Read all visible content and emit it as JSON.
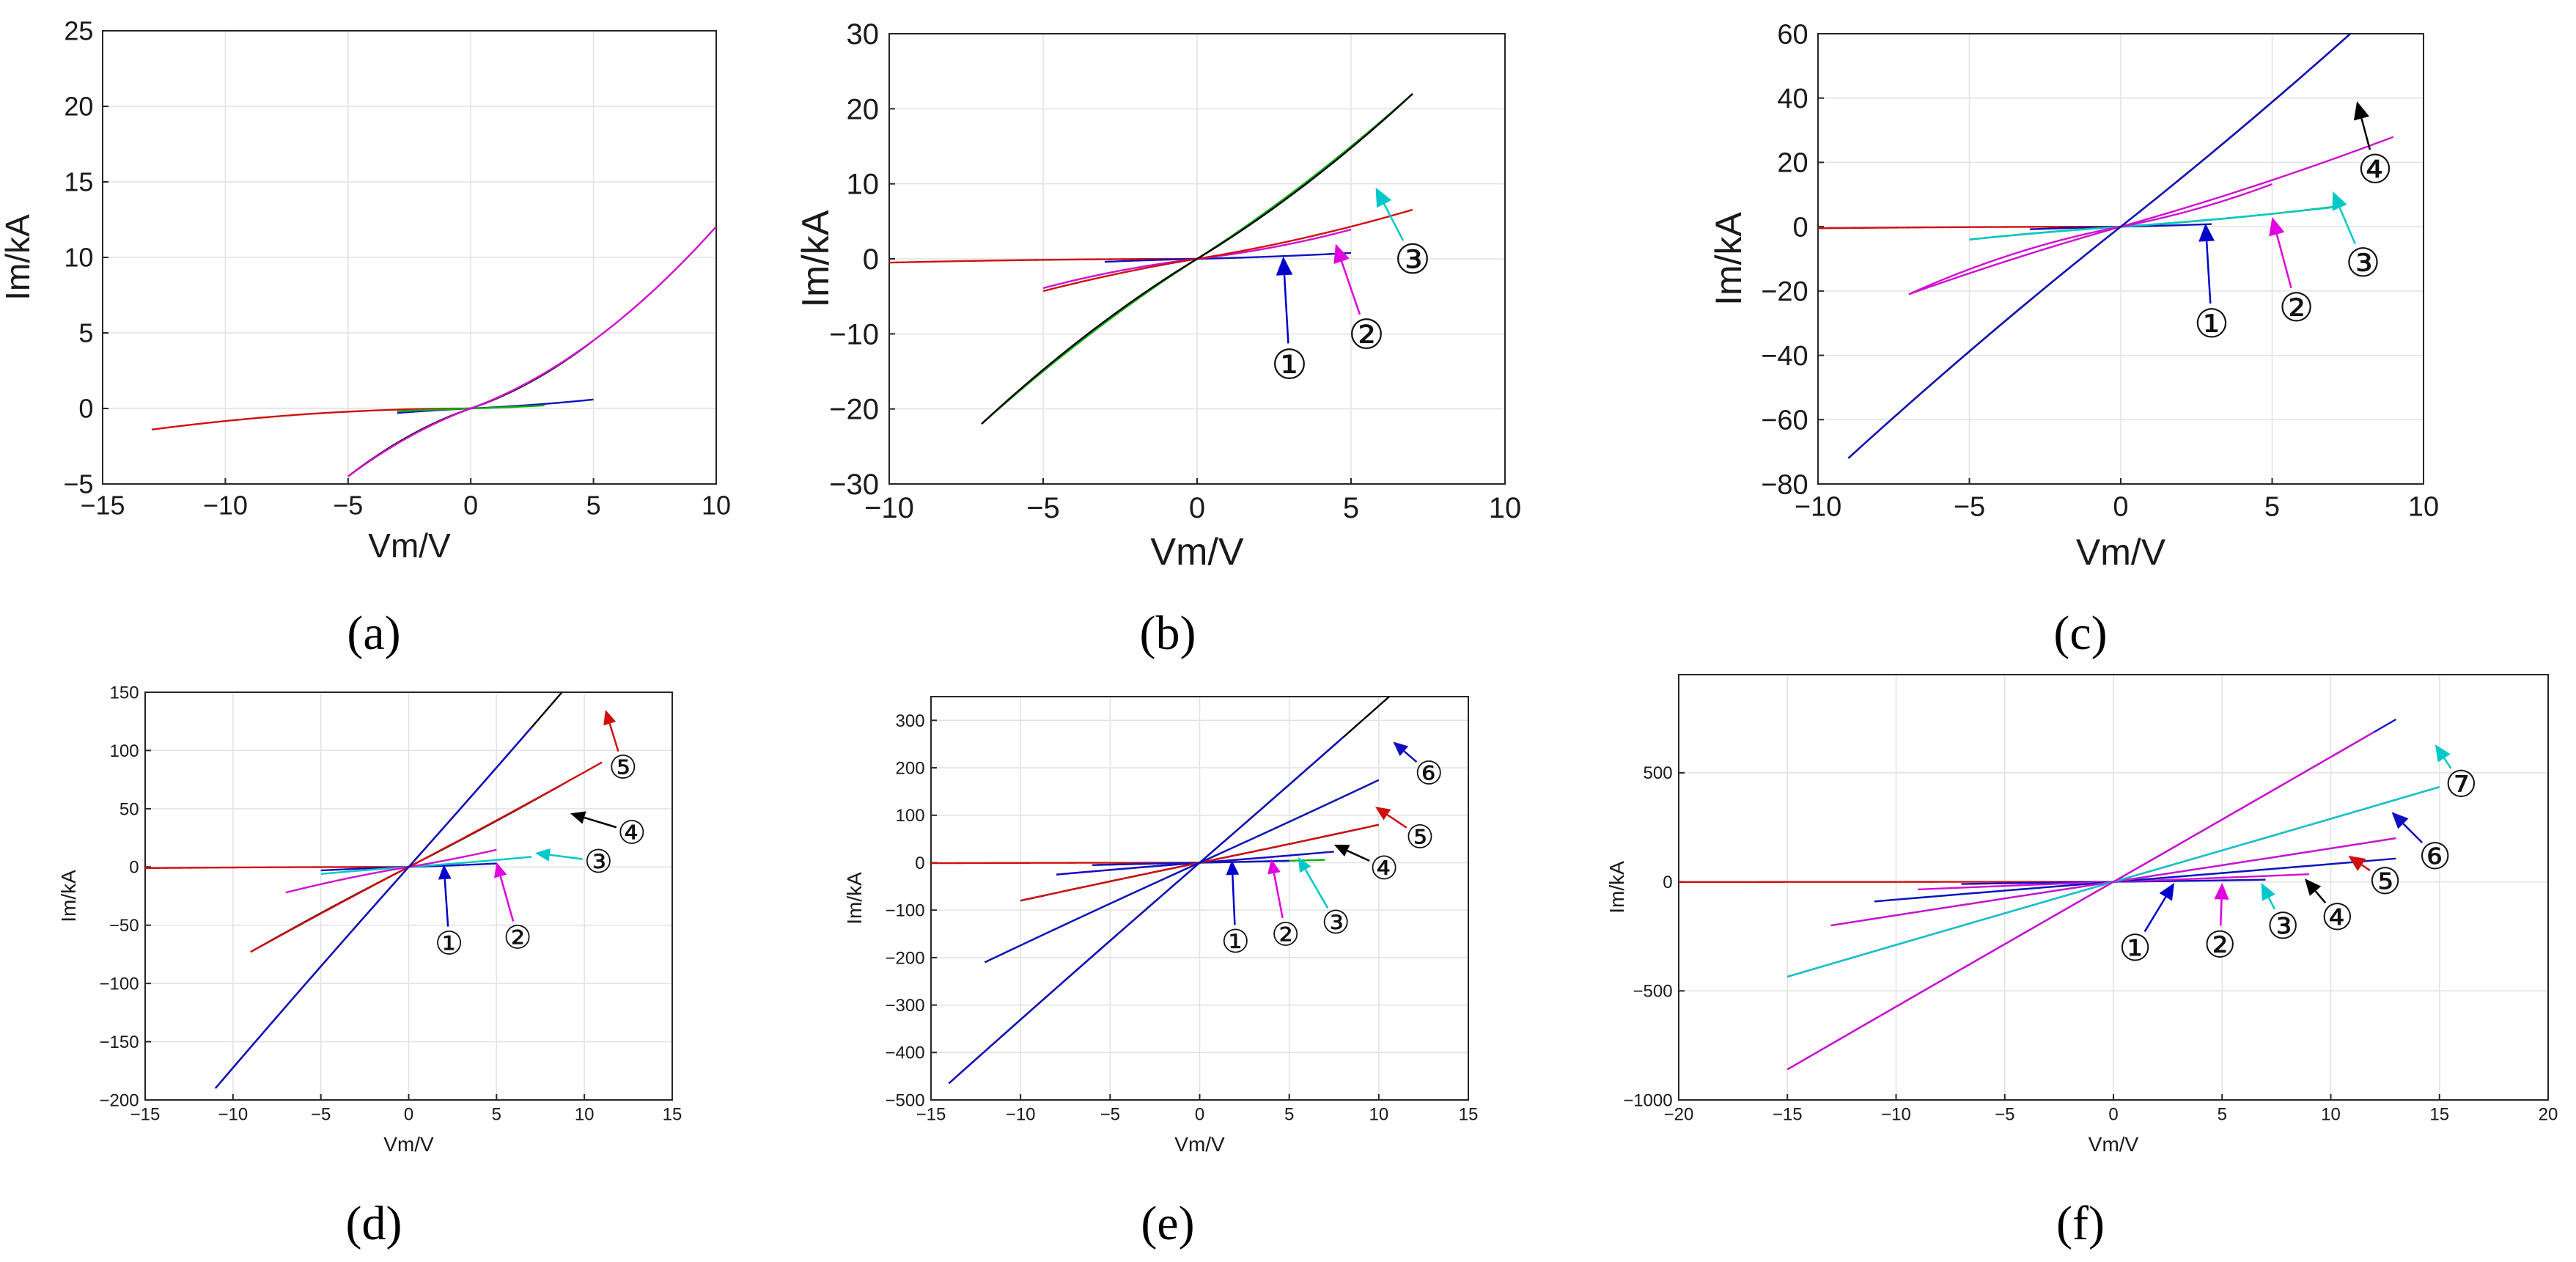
{
  "figure": {
    "description_hidden": false
  },
  "chart_data": [
    {
      "id": "a",
      "type": "line",
      "label": "(a)",
      "xlabel": "Vm/V",
      "ylabel": "Im/kA",
      "xlim": [
        -15,
        10
      ],
      "ylim": [
        -5,
        25
      ],
      "xticks": [
        -15,
        -10,
        -5,
        0,
        5,
        10
      ],
      "yticks": [
        -5,
        0,
        5,
        10,
        15,
        20,
        25
      ],
      "grid": true,
      "series": [
        {
          "color": "#d01010",
          "curve": [
            -13,
            0,
            1,
            -1.4,
            0.17,
            0.65
          ]
        },
        {
          "color": "#1010c0",
          "curve": [
            -3,
            5,
            1,
            -0.3,
            0.4,
            0.05
          ]
        },
        {
          "color": "#10b010",
          "curve": [
            -3,
            3,
            1,
            -0.2,
            0.05,
            0.01
          ]
        },
        {
          "color": "#000000",
          "curve": [
            -5,
            5,
            1,
            -4.5,
            0.4,
            0.05
          ]
        },
        {
          "color": "#d010d0",
          "curve": [
            -5,
            10,
            0,
            -4.5,
            1.0,
            0.102
          ]
        }
      ],
      "callouts": []
    },
    {
      "id": "b",
      "type": "line",
      "label": "(b)",
      "xlabel": "Vm/V",
      "ylabel": "Im/kA",
      "xlim": [
        -10,
        10
      ],
      "ylim": [
        -30,
        30
      ],
      "xticks": [
        -10,
        -5,
        0,
        5,
        10
      ],
      "yticks": [
        -30,
        -20,
        -10,
        0,
        10,
        20,
        30
      ],
      "grid": true,
      "series": [
        {
          "color": "#d01010",
          "curve": [
            -10,
            0,
            1,
            -0.5,
            0.3,
            0.35
          ]
        },
        {
          "color": "#1010c0",
          "curve": [
            -3,
            5,
            1,
            -0.4,
            0.4,
            0.05
          ]
        },
        {
          "color": "#d010d0",
          "curve": [
            -5,
            5,
            1,
            -3.9,
            0.4,
            0.05
          ]
        },
        {
          "color": "#10b010",
          "curve": [
            -7,
            7,
            1,
            -22,
            1.8,
            0.05
          ]
        },
        {
          "color": "#d01010",
          "curve": [
            -5,
            7,
            1,
            -4.3,
            0.8,
            0.045
          ]
        },
        {
          "color": "#000000",
          "curve": [
            -7,
            7,
            1,
            -22,
            2.4,
            0.09
          ]
        }
      ],
      "callouts": [
        {
          "text": "①",
          "color": "#0000cc",
          "tip": [
            2.8,
            0.3
          ],
          "pos": [
            3.0,
            -14
          ]
        },
        {
          "text": "②",
          "color": "#e000e0",
          "tip": [
            4.5,
            2
          ],
          "pos": [
            5.5,
            -10
          ]
        },
        {
          "text": "③",
          "color": "#00c8c8",
          "tip": [
            5.8,
            9.5
          ],
          "pos": [
            7.0,
            0
          ]
        }
      ]
    },
    {
      "id": "c",
      "type": "line",
      "label": "(c)",
      "xlabel": "Vm/V",
      "ylabel": "Im/kA",
      "xlim": [
        -10,
        10
      ],
      "ylim": [
        -80,
        60
      ],
      "xticks": [
        -10,
        -5,
        0,
        5,
        10
      ],
      "yticks": [
        -80,
        -60,
        -40,
        -20,
        0,
        20,
        40,
        60
      ],
      "grid": true,
      "series": [
        {
          "color": "#d01010",
          "curve": [
            -10,
            0,
            1,
            -0.5,
            0.3,
            0.35
          ]
        },
        {
          "color": "#1010c0",
          "curve": [
            -3,
            3,
            1,
            -0.8,
            0.3,
            0.03
          ]
        },
        {
          "color": "#10b010",
          "curve": [
            -5,
            7,
            1,
            -4,
            0.9,
            0.06
          ]
        },
        {
          "color": "#00c8c8",
          "curve": [
            -5,
            7,
            1,
            -4,
            1.3,
            0.06
          ]
        },
        {
          "color": "#d010d0",
          "curve": [
            -7,
            5,
            1,
            -21,
            0.5,
            0.05
          ]
        },
        {
          "color": "#d010d0",
          "curve": [
            -7,
            9,
            0,
            -21,
            4.2,
            0.08
          ]
        },
        {
          "color": "#000000",
          "curve": [
            -9,
            9,
            1,
            -72,
            6.2,
            0.05
          ]
        },
        {
          "color": "#1010c0",
          "curve": [
            -9,
            9,
            0,
            -72,
            7.0,
            0.06
          ]
        }
      ],
      "callouts": [
        {
          "text": "①",
          "color": "#0000cc",
          "tip": [
            2.8,
            1
          ],
          "pos": [
            3.0,
            -30
          ]
        },
        {
          "text": "②",
          "color": "#e000e0",
          "tip": [
            5.0,
            3
          ],
          "pos": [
            5.8,
            -25
          ]
        },
        {
          "text": "③",
          "color": "#00c8c8",
          "tip": [
            7.0,
            11
          ],
          "pos": [
            8.0,
            -11
          ]
        },
        {
          "text": "④",
          "color": "#000000",
          "tip": [
            7.8,
            39
          ],
          "pos": [
            8.4,
            18
          ]
        }
      ]
    },
    {
      "id": "d",
      "type": "line",
      "label": "(d)",
      "xlabel": "Vm/V",
      "ylabel": "Im/kA",
      "xlim": [
        -15,
        15
      ],
      "ylim": [
        -200,
        150
      ],
      "xticks": [
        -15,
        -10,
        -5,
        0,
        5,
        10,
        15
      ],
      "yticks": [
        -200,
        -150,
        -100,
        -50,
        0,
        50,
        100,
        150
      ],
      "grid": true,
      "series": [
        {
          "color": "#d01010",
          "curve": [
            -15,
            0,
            1,
            -1,
            0.3,
            0.4
          ]
        },
        {
          "color": "#1010c0",
          "curve": [
            -5,
            5,
            1,
            -3,
            0.3,
            0.02
          ]
        },
        {
          "color": "#00c8c8",
          "curve": [
            -5,
            7,
            1,
            -6,
            1.6,
            0.04
          ]
        },
        {
          "color": "#d010d0",
          "curve": [
            -7,
            5,
            1,
            -22,
            0.8,
            0.03
          ]
        },
        {
          "color": "#000000",
          "curve": [
            -9,
            9,
            1,
            -73,
            5,
            0.03
          ]
        },
        {
          "color": "#d01010",
          "curve": [
            -9,
            11,
            0,
            -73,
            12,
            0.04
          ]
        },
        {
          "color": "#000000",
          "curve": [
            -11,
            11,
            1,
            -190,
            12,
            0.025
          ]
        },
        {
          "color": "#1010c0",
          "curve": [
            -11,
            7,
            0,
            -190,
            21,
            0.04
          ]
        }
      ],
      "callouts": [
        {
          "text": "①",
          "color": "#0000cc",
          "tip": [
            2.0,
            2
          ],
          "pos": [
            2.3,
            -65
          ]
        },
        {
          "text": "②",
          "color": "#e000e0",
          "tip": [
            5.0,
            4
          ],
          "pos": [
            6.2,
            -60
          ]
        },
        {
          "text": "③",
          "color": "#00c8c8",
          "tip": [
            7.2,
            12
          ],
          "pos": [
            10.8,
            5
          ]
        },
        {
          "text": "④",
          "color": "#000000",
          "tip": [
            9.2,
            46
          ],
          "pos": [
            12.7,
            30
          ]
        },
        {
          "text": "⑤",
          "color": "#d01010",
          "tip": [
            11.2,
            135
          ],
          "pos": [
            12.2,
            86
          ]
        }
      ]
    },
    {
      "id": "e",
      "type": "line",
      "label": "(e)",
      "xlabel": "Vm/V",
      "ylabel": "Im/kA",
      "xlim": [
        -15,
        15
      ],
      "ylim": [
        -500,
        350
      ],
      "xticks": [
        -15,
        -10,
        -5,
        0,
        5,
        10,
        15
      ],
      "yticks": [
        -500,
        -400,
        -300,
        -200,
        -100,
        0,
        100,
        200,
        300
      ],
      "grid": true,
      "series": [
        {
          "color": "#d01010",
          "curve": [
            -15,
            0,
            1,
            -1,
            0.3,
            0.4
          ]
        },
        {
          "color": "#10b010",
          "curve": [
            -6,
            7,
            1,
            -5,
            1.8,
            0.04
          ]
        },
        {
          "color": "#1010c0",
          "curve": [
            -6,
            5,
            1,
            -5,
            1.3,
            0.03
          ]
        },
        {
          "color": "#d010d0",
          "curve": [
            -8,
            6,
            1,
            -25,
            2.5,
            0.03
          ]
        },
        {
          "color": "#1010c0",
          "curve": [
            -8,
            7.5,
            0,
            -25,
            4.5,
            0.04
          ]
        },
        {
          "color": "#000000",
          "curve": [
            -10,
            10,
            1,
            -80,
            9,
            0.03
          ]
        },
        {
          "color": "#d01010",
          "curve": [
            -10,
            10,
            0,
            -80,
            10.5,
            0.035
          ]
        },
        {
          "color": "#10b010",
          "curve": [
            -12,
            10,
            1,
            -210,
            9.5,
            0.02
          ]
        },
        {
          "color": "#1010c0",
          "curve": [
            -12,
            10,
            0,
            -210,
            11.5,
            0.025
          ]
        },
        {
          "color": "#000000",
          "curve": [
            -14,
            12,
            1,
            -465,
            21,
            0.025
          ]
        },
        {
          "color": "#1010c0",
          "curve": [
            -14,
            8,
            0,
            -465,
            32,
            0.03
          ]
        }
      ],
      "callouts": [
        {
          "text": "①",
          "color": "#0000cc",
          "tip": [
            1.8,
            5
          ],
          "pos": [
            2.0,
            -165
          ]
        },
        {
          "text": "②",
          "color": "#e000e0",
          "tip": [
            4.0,
            8
          ],
          "pos": [
            4.8,
            -150
          ]
        },
        {
          "text": "③",
          "color": "#00c8c8",
          "tip": [
            5.5,
            12
          ],
          "pos": [
            7.6,
            -125
          ]
        },
        {
          "text": "④",
          "color": "#000000",
          "tip": [
            7.5,
            38
          ],
          "pos": [
            10.3,
            -10
          ]
        },
        {
          "text": "⑤",
          "color": "#d01010",
          "tip": [
            9.8,
            118
          ],
          "pos": [
            12.3,
            55
          ]
        },
        {
          "text": "⑥",
          "color": "#1010c0",
          "tip": [
            10.8,
            255
          ],
          "pos": [
            12.8,
            190
          ]
        }
      ]
    },
    {
      "id": "f",
      "type": "line",
      "label": "(f)",
      "xlabel": "Vm/V",
      "ylabel": "Im/kA",
      "xlim": [
        -20,
        20
      ],
      "ylim": [
        -1000,
        950
      ],
      "xticks": [
        -20,
        -15,
        -10,
        -5,
        0,
        5,
        10,
        15,
        20
      ],
      "yticks": [
        -1000,
        -500,
        0,
        500
      ],
      "grid": true,
      "series": [
        {
          "color": "#d01010",
          "curve": [
            -20,
            0,
            1,
            -1,
            0.3,
            0.4
          ]
        },
        {
          "color": "#1010c0",
          "curve": [
            -7,
            7,
            1,
            -10,
            0.8,
            0.03
          ]
        },
        {
          "color": "#d010d0",
          "curve": [
            -9,
            9,
            1,
            -35,
            2,
            0.02
          ]
        },
        {
          "color": "#00c8c8",
          "curve": [
            -11,
            11,
            1,
            -90,
            4.5,
            0.02
          ]
        },
        {
          "color": "#1010c0",
          "curve": [
            -11,
            13,
            0,
            -90,
            9,
            0.02
          ]
        },
        {
          "color": "#00c8c8",
          "curve": [
            -13,
            13,
            1,
            -200,
            13,
            0.02
          ]
        },
        {
          "color": "#d010d0",
          "curve": [
            -13,
            13,
            0,
            -200,
            22,
            0.02
          ]
        },
        {
          "color": "#d010d0",
          "curve": [
            -15,
            15,
            1,
            -435,
            30,
            0.02
          ]
        },
        {
          "color": "#00c8c8",
          "curve": [
            -15,
            15,
            0,
            -435,
            41,
            0.02
          ]
        },
        {
          "color": "#1010c0",
          "curve": [
            -15,
            13,
            1,
            -860,
            60,
            0.02
          ]
        },
        {
          "color": "#d010d0",
          "curve": [
            -15,
            12,
            0,
            -860,
            52,
            0.018
          ]
        }
      ],
      "callouts": [
        {
          "text": "①",
          "color": "#0000cc",
          "tip": [
            2.8,
            -5
          ],
          "pos": [
            1.0,
            -300
          ]
        },
        {
          "text": "②",
          "color": "#e000e0",
          "tip": [
            5.0,
            -5
          ],
          "pos": [
            4.9,
            -285
          ]
        },
        {
          "text": "③",
          "color": "#00c8c8",
          "tip": [
            6.8,
            -5
          ],
          "pos": [
            7.8,
            -200
          ]
        },
        {
          "text": "④",
          "color": "#000000",
          "tip": [
            8.8,
            15
          ],
          "pos": [
            10.3,
            -160
          ]
        },
        {
          "text": "⑤",
          "color": "#d01010",
          "tip": [
            10.8,
            120
          ],
          "pos": [
            12.5,
            5
          ]
        },
        {
          "text": "⑥",
          "color": "#1010c0",
          "tip": [
            12.8,
            320
          ],
          "pos": [
            14.8,
            120
          ]
        },
        {
          "text": "⑦",
          "color": "#00c8c8",
          "tip": [
            14.8,
            630
          ],
          "pos": [
            16.0,
            450
          ]
        }
      ]
    }
  ]
}
